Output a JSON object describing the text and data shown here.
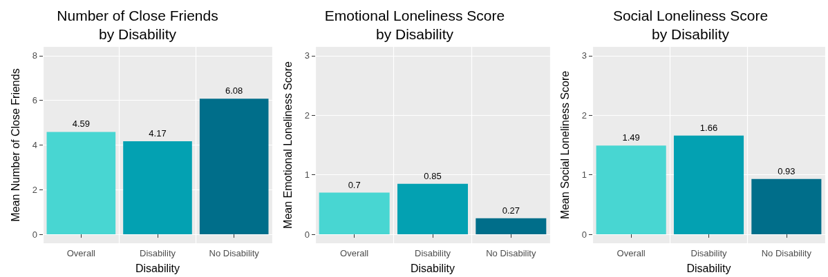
{
  "chart_data": [
    {
      "type": "bar",
      "title": "Number of Close Friends\nby Disability",
      "xlabel": "Disability",
      "ylabel": "Mean Number of Close Friends",
      "categories": [
        "Overall",
        "Disability",
        "No Disability"
      ],
      "values": [
        4.59,
        4.17,
        6.08
      ],
      "colors": [
        "#48d6d2",
        "#03a1b2",
        "#006e8a"
      ],
      "ylim": [
        -0.4,
        8.4
      ],
      "yticks": [
        0,
        2,
        4,
        6,
        8
      ],
      "grid": true,
      "data_labels": true
    },
    {
      "type": "bar",
      "title": "Emotional Loneliness Score\nby Disability",
      "xlabel": "Disability",
      "ylabel": "Mean Emotional Loneliness Score",
      "categories": [
        "Overall",
        "Disability",
        "No Disability"
      ],
      "values": [
        0.7,
        0.85,
        0.27
      ],
      "colors": [
        "#48d6d2",
        "#03a1b2",
        "#006e8a"
      ],
      "ylim": [
        -0.15,
        3.15
      ],
      "yticks": [
        0,
        1,
        2,
        3
      ],
      "grid": true,
      "data_labels": true
    },
    {
      "type": "bar",
      "title": "Social Loneliness Score\nby Disability",
      "xlabel": "Disability",
      "ylabel": "Mean Social Loneliness Score",
      "categories": [
        "Overall",
        "Disability",
        "No Disability"
      ],
      "values": [
        1.49,
        1.66,
        0.93
      ],
      "colors": [
        "#48d6d2",
        "#03a1b2",
        "#006e8a"
      ],
      "ylim": [
        -0.15,
        3.15
      ],
      "yticks": [
        0,
        1,
        2,
        3
      ],
      "grid": true,
      "data_labels": true
    }
  ]
}
